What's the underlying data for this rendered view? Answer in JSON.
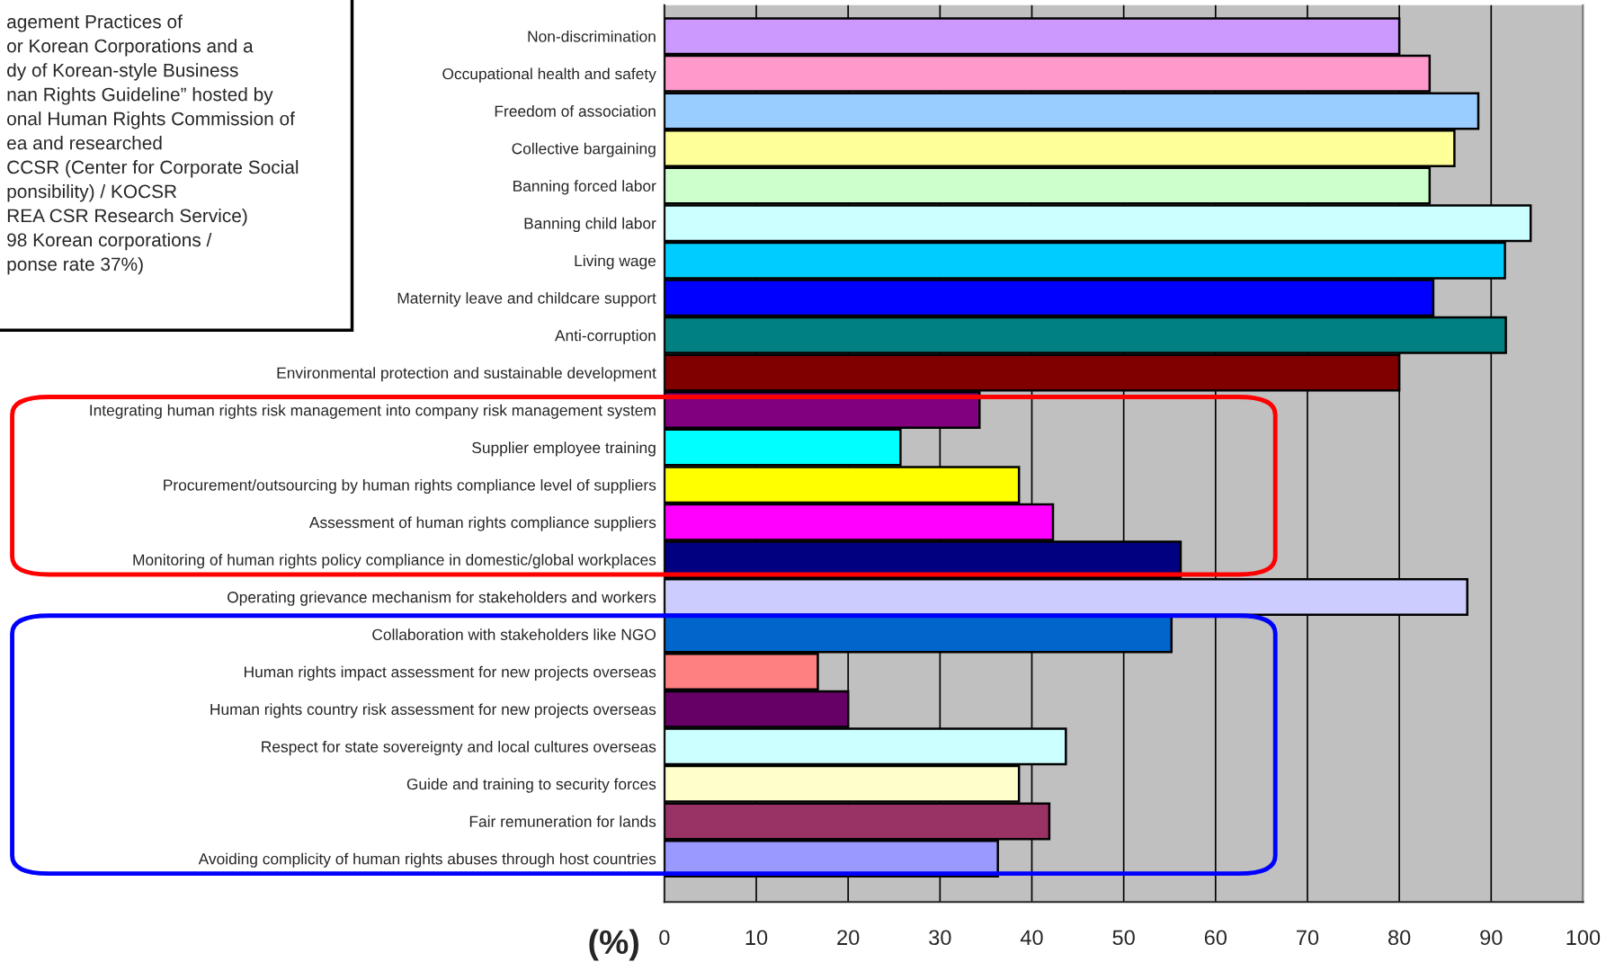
{
  "chart_data": {
    "type": "bar",
    "orientation": "horizontal",
    "xlabel": "(%)",
    "categories": [
      "Non-discrimination",
      "Occupational health and safety",
      "Freedom of association",
      "Collective bargaining",
      "Banning forced labor",
      "Banning child labor",
      "Living wage",
      "Maternity leave and childcare support",
      "Anti-corruption",
      "Environmental protection and sustainable development",
      "Integrating human rights risk management into company risk management system",
      "Supplier employee training",
      "Procurement/outsourcing by human rights compliance level of suppliers",
      "Assessment of human rights compliance suppliers",
      "Monitoring of human rights policy compliance in domestic/global workplaces",
      "Operating grievance mechanism for stakeholders and workers",
      "Collaboration with stakeholders like NGO",
      "Human rights impact assessment for new projects overseas",
      "Human rights country risk assessment for new projects overseas",
      "Respect for state sovereignty and local cultures overseas",
      "Guide and training to security forces",
      "Fair remuneration for lands",
      "Avoiding complicity of human rights abuses through host countries"
    ],
    "values": [
      80,
      83.3,
      88.6,
      86,
      83.3,
      94.3,
      91.5,
      83.7,
      91.6,
      80,
      34.3,
      25.7,
      38.6,
      42.3,
      56.2,
      87.4,
      55.2,
      16.7,
      20,
      43.7,
      38.6,
      41.9,
      36.3
    ],
    "colors": [
      "#cc99ff",
      "#ff99cc",
      "#99ccff",
      "#ffff99",
      "#ccffcc",
      "#ccffff",
      "#00ccff",
      "#0000ff",
      "#008080",
      "#800000",
      "#800080",
      "#00ffff",
      "#ffff00",
      "#ff00ff",
      "#000080",
      "#ccccff",
      "#0066cc",
      "#ff8080",
      "#660066",
      "#ccffff",
      "#ffffcc",
      "#993366",
      "#9999ff"
    ],
    "xlim": [
      0,
      100
    ],
    "xticks": [
      0,
      10,
      20,
      30,
      40,
      50,
      60,
      70,
      80,
      90,
      100
    ],
    "grid": "x",
    "annotations": [
      "agement Practices of\nor Korean Corporations and a\ndy of Korean-style Business\nnan Rights Guideline” hosted by\nonal Human Rights Commission of\nea and researched\nCCSR (Center for Corporate Social\nponsibility) / KOCSR\nREA CSR Research Service)\n98 Korean corporations /\nponse rate 37%)"
    ]
  }
}
